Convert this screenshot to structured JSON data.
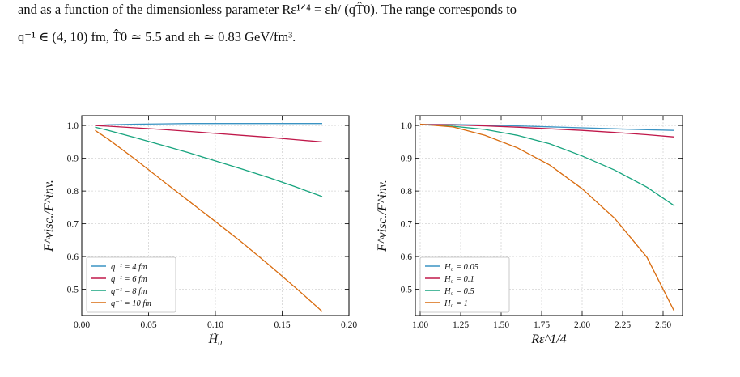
{
  "caption": {
    "line1": "and as a function of the dimensionless parameter Rε¹ᐟ⁴ = εh/ (qT̂0). The range corresponds to",
    "line2": "q⁻¹ ∈ (4, 10) fm, T̂0 ≃ 5.5 and εh ≃ 0.83 GeV/fm³."
  },
  "chart_data": [
    {
      "type": "line",
      "xlabel": "H̃₀",
      "ylabel": "F^visc./F^inv.",
      "xlim": [
        0.0,
        0.2
      ],
      "ylim": [
        0.42,
        1.03
      ],
      "xticks": [
        "0.00",
        "0.05",
        "0.10",
        "0.15",
        "0.20"
      ],
      "yticks": [
        "0.5",
        "0.6",
        "0.7",
        "0.8",
        "0.9",
        "1.0"
      ],
      "grid": true,
      "legend_position": "lower-left",
      "x": [
        0.01,
        0.02,
        0.04,
        0.06,
        0.08,
        0.1,
        0.12,
        0.14,
        0.16,
        0.18
      ],
      "series": [
        {
          "name": "q⁻¹ = 4 fm",
          "color": "#3a93c3",
          "values": [
            1.0,
            1.002,
            1.004,
            1.005,
            1.006,
            1.006,
            1.006,
            1.006,
            1.006,
            1.006
          ]
        },
        {
          "name": "q⁻¹ = 6 fm",
          "color": "#c0184a",
          "values": [
            1.0,
            0.998,
            0.993,
            0.988,
            0.982,
            0.976,
            0.97,
            0.964,
            0.957,
            0.95
          ]
        },
        {
          "name": "q⁻¹ = 8 fm",
          "color": "#17a47e",
          "values": [
            0.995,
            0.985,
            0.963,
            0.94,
            0.917,
            0.892,
            0.867,
            0.841,
            0.813,
            0.783
          ]
        },
        {
          "name": "q⁻¹ = 10 fm",
          "color": "#d96c0f",
          "values": [
            0.985,
            0.958,
            0.897,
            0.833,
            0.77,
            0.707,
            0.643,
            0.575,
            0.505,
            0.432
          ]
        }
      ]
    },
    {
      "type": "line",
      "xlabel": "Rε^1/4",
      "ylabel": "F^visc./F^inv.",
      "xlim": [
        0.97,
        2.62
      ],
      "ylim": [
        0.42,
        1.03
      ],
      "xticks": [
        "1.00",
        "1.25",
        "1.50",
        "1.75",
        "2.00",
        "2.25",
        "2.50"
      ],
      "yticks": [
        "0.5",
        "0.6",
        "0.7",
        "0.8",
        "0.9",
        "1.0"
      ],
      "grid": true,
      "legend_position": "lower-left",
      "x": [
        1.0,
        1.2,
        1.4,
        1.6,
        1.8,
        2.0,
        2.2,
        2.4,
        2.57
      ],
      "series": [
        {
          "name": "H₀ = 0.05",
          "color": "#3a93c3",
          "values": [
            1.003,
            1.003,
            1.001,
            0.999,
            0.996,
            0.993,
            0.99,
            0.987,
            0.985
          ]
        },
        {
          "name": "H₀ = 0.1",
          "color": "#c0184a",
          "values": [
            1.003,
            1.002,
            0.999,
            0.995,
            0.99,
            0.985,
            0.979,
            0.972,
            0.965
          ]
        },
        {
          "name": "H₀ = 0.5",
          "color": "#17a47e",
          "values": [
            1.003,
            0.998,
            0.988,
            0.97,
            0.944,
            0.907,
            0.864,
            0.812,
            0.755
          ]
        },
        {
          "name": "H₀ = 1",
          "color": "#d96c0f",
          "values": [
            1.004,
            0.996,
            0.97,
            0.932,
            0.879,
            0.807,
            0.717,
            0.598,
            0.432
          ]
        }
      ]
    }
  ]
}
